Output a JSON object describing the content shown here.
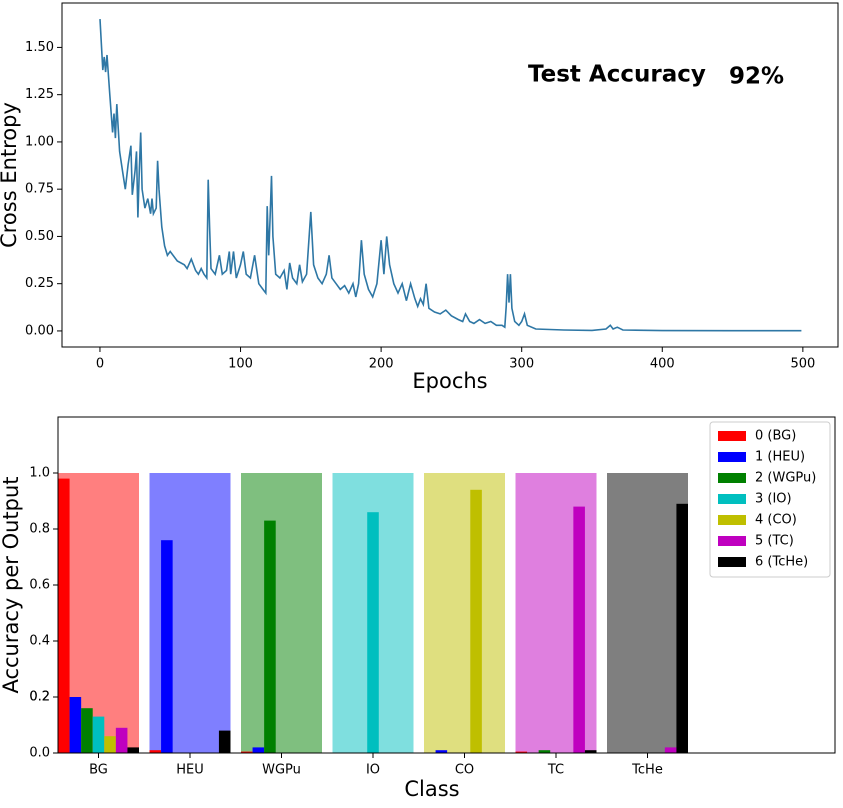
{
  "chart_data": [
    {
      "type": "line",
      "xlabel": "Epochs",
      "ylabel": "Cross Entropy",
      "annotations": [
        "Test Accuracy",
        "92%"
      ],
      "color": "#2e77a5",
      "xlim": [
        -27,
        525
      ],
      "ylim": [
        -0.085,
        1.735
      ],
      "xticks": [
        0,
        100,
        200,
        300,
        400,
        500
      ],
      "yticks": [
        {
          "value": 0,
          "label": "0.00"
        },
        {
          "value": 0.25,
          "label": "0.25"
        },
        {
          "value": 0.5,
          "label": "0.50"
        },
        {
          "value": 0.75,
          "label": "0.75"
        },
        {
          "value": 1,
          "label": "1.00"
        },
        {
          "value": 1.25,
          "label": "1.25"
        },
        {
          "value": 1.5,
          "label": "1.50"
        }
      ],
      "x": [
        0,
        2,
        3,
        4,
        5,
        7,
        9,
        10,
        11,
        12,
        14,
        16,
        18,
        20,
        22,
        23,
        25,
        26,
        27,
        28,
        29,
        30,
        32,
        34,
        36,
        37,
        38,
        40,
        41,
        42,
        44,
        46,
        48,
        50,
        55,
        60,
        62,
        65,
        68,
        70,
        72,
        74,
        76,
        77,
        78,
        79,
        82,
        85,
        87,
        90,
        92,
        93,
        95,
        97,
        100,
        102,
        104,
        107,
        110,
        113,
        116,
        118,
        119,
        120,
        121,
        122,
        123,
        125,
        128,
        131,
        133,
        135,
        137,
        140,
        142,
        144,
        147,
        150,
        152,
        155,
        158,
        161,
        163,
        165,
        168,
        171,
        174,
        177,
        180,
        182,
        184,
        186,
        188,
        191,
        194,
        197,
        200,
        202,
        204,
        206,
        209,
        212,
        215,
        218,
        221,
        224,
        226,
        228,
        230,
        232,
        234,
        238,
        242,
        246,
        250,
        255,
        258,
        260,
        263,
        266,
        270,
        274,
        278,
        282,
        286,
        288,
        289,
        290,
        291,
        292,
        293,
        295,
        298,
        300,
        302,
        304,
        310,
        330,
        350,
        360,
        363,
        365,
        368,
        372,
        400,
        450,
        499
      ],
      "values": [
        1.65,
        1.38,
        1.45,
        1.37,
        1.46,
        1.25,
        1.05,
        1.15,
        1.02,
        1.2,
        0.95,
        0.85,
        0.75,
        0.88,
        0.98,
        0.72,
        0.85,
        0.95,
        0.6,
        0.85,
        1.05,
        0.75,
        0.65,
        0.7,
        0.62,
        0.7,
        0.62,
        0.65,
        0.9,
        0.75,
        0.55,
        0.45,
        0.4,
        0.42,
        0.37,
        0.35,
        0.33,
        0.38,
        0.32,
        0.3,
        0.33,
        0.3,
        0.28,
        0.8,
        0.55,
        0.33,
        0.3,
        0.4,
        0.3,
        0.32,
        0.42,
        0.3,
        0.42,
        0.28,
        0.35,
        0.42,
        0.3,
        0.28,
        0.4,
        0.25,
        0.22,
        0.2,
        0.66,
        0.4,
        0.6,
        0.82,
        0.5,
        0.3,
        0.28,
        0.32,
        0.22,
        0.36,
        0.28,
        0.25,
        0.35,
        0.26,
        0.3,
        0.63,
        0.35,
        0.28,
        0.25,
        0.3,
        0.4,
        0.28,
        0.25,
        0.22,
        0.24,
        0.2,
        0.25,
        0.18,
        0.25,
        0.48,
        0.3,
        0.22,
        0.18,
        0.25,
        0.48,
        0.3,
        0.5,
        0.35,
        0.25,
        0.2,
        0.25,
        0.16,
        0.25,
        0.17,
        0.13,
        0.17,
        0.14,
        0.25,
        0.12,
        0.1,
        0.09,
        0.11,
        0.08,
        0.06,
        0.05,
        0.09,
        0.05,
        0.04,
        0.06,
        0.04,
        0.05,
        0.03,
        0.03,
        0.02,
        0.13,
        0.3,
        0.15,
        0.3,
        0.12,
        0.05,
        0.03,
        0.05,
        0.09,
        0.03,
        0.01,
        0.005,
        0.003,
        0.01,
        0.03,
        0.01,
        0.02,
        0.005,
        0.002,
        0.001,
        0.001
      ]
    },
    {
      "type": "bar",
      "xlabel": "Class",
      "ylabel": "Accuracy per Output",
      "categories": [
        "BG",
        "HEU",
        "WGPu",
        "IO",
        "CO",
        "TC",
        "TcHe"
      ],
      "background_values": [
        1,
        1,
        1,
        1,
        1,
        1,
        1
      ],
      "background_opacity": 0.5,
      "ylim": [
        0,
        1.2
      ],
      "yticks": [
        {
          "value": 0,
          "label": "0.0"
        },
        0.2,
        0.4,
        0.6,
        0.8,
        {
          "value": 1,
          "label": "1.0"
        },
        0.2
      ],
      "legend": "upper right",
      "series": [
        {
          "name": "0 (BG)",
          "color": "#ff0000",
          "values": [
            0.98,
            0.01,
            0.005,
            0,
            0,
            0.005,
            0
          ]
        },
        {
          "name": "1 (HEU)",
          "color": "#0000ff",
          "values": [
            0.2,
            0.76,
            0.02,
            0,
            0.01,
            0,
            0
          ]
        },
        {
          "name": "2 (WGPu)",
          "color": "#008000",
          "values": [
            0.16,
            0,
            0.83,
            0,
            0,
            0.01,
            0
          ]
        },
        {
          "name": "3 (IO)",
          "color": "#00bfbf",
          "values": [
            0.13,
            0,
            0,
            0.86,
            0,
            0,
            0
          ]
        },
        {
          "name": "4 (CO)",
          "color": "#bfbf00",
          "values": [
            0.06,
            0,
            0,
            0,
            0.94,
            0,
            0
          ]
        },
        {
          "name": "5 (TC)",
          "color": "#bf00bf",
          "values": [
            0.09,
            0,
            0,
            0,
            0,
            0.88,
            0.02
          ]
        },
        {
          "name": "6 (TcHe)",
          "color": "#000000",
          "values": [
            0.02,
            0.08,
            0,
            0,
            0,
            0.01,
            0.89
          ]
        }
      ]
    }
  ]
}
